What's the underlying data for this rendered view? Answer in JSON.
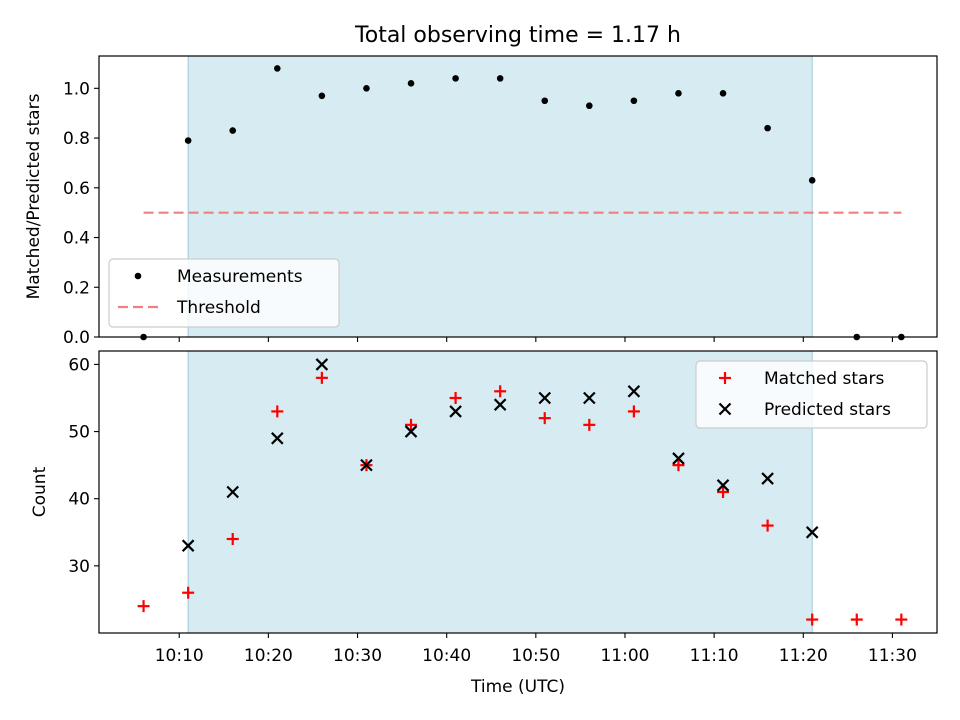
{
  "figure": {
    "title": "Total observing time = 1.17 h",
    "observing_window_color": "#add8e6",
    "observing_window": [
      "10:11",
      "11:21"
    ]
  },
  "chart_data": [
    {
      "type": "scatter",
      "panel": "top",
      "ylabel": "Matched/Predicted stars",
      "xlabel": "",
      "xlim": [
        "10:01",
        "11:35"
      ],
      "ylim": [
        0,
        1.13
      ],
      "yticks": [
        0.0,
        0.2,
        0.4,
        0.6,
        0.8,
        1.0
      ],
      "ytick_labels": [
        "0.0",
        "0.2",
        "0.4",
        "0.6",
        "0.8",
        "1.0"
      ],
      "xticks": [
        "10:10",
        "10:20",
        "10:30",
        "10:40",
        "10:50",
        "11:00",
        "11:10",
        "11:20",
        "11:30"
      ],
      "xtick_labels_visible": false,
      "legend_position": "lower-left",
      "series": [
        {
          "name": "Measurements",
          "kind": "scatter",
          "marker": "dot",
          "color": "#000000",
          "x": [
            "10:06",
            "10:11",
            "10:16",
            "10:21",
            "10:26",
            "10:31",
            "10:36",
            "10:41",
            "10:46",
            "10:51",
            "10:56",
            "11:01",
            "11:06",
            "11:11",
            "11:16",
            "11:21",
            "11:26",
            "11:31"
          ],
          "y": [
            0.0,
            0.79,
            0.83,
            1.08,
            0.97,
            1.0,
            1.02,
            1.04,
            1.04,
            0.95,
            0.93,
            0.95,
            0.98,
            0.98,
            0.84,
            0.63,
            0.0,
            0.0
          ]
        },
        {
          "name": "Threshold",
          "kind": "line",
          "style": "dashed",
          "color": "#f08080",
          "x": [
            "10:06",
            "11:31"
          ],
          "y": [
            0.5,
            0.5
          ]
        }
      ]
    },
    {
      "type": "scatter",
      "panel": "bottom",
      "ylabel": "Count",
      "xlabel": "Time (UTC)",
      "xlim": [
        "10:01",
        "11:35"
      ],
      "ylim": [
        20,
        62
      ],
      "yticks": [
        30,
        40,
        50,
        60
      ],
      "ytick_labels": [
        "30",
        "40",
        "50",
        "60"
      ],
      "xticks": [
        "10:10",
        "10:20",
        "10:30",
        "10:40",
        "10:50",
        "11:00",
        "11:10",
        "11:20",
        "11:30"
      ],
      "xtick_labels": [
        "10:10",
        "10:20",
        "10:30",
        "10:40",
        "10:50",
        "11:00",
        "11:10",
        "11:20",
        "11:30"
      ],
      "legend_position": "upper-right",
      "series": [
        {
          "name": "Matched stars",
          "kind": "scatter",
          "marker": "plus",
          "color": "#ff0000",
          "x": [
            "10:06",
            "10:11",
            "10:16",
            "10:21",
            "10:26",
            "10:31",
            "10:36",
            "10:41",
            "10:46",
            "10:51",
            "10:56",
            "11:01",
            "11:06",
            "11:11",
            "11:16",
            "11:21",
            "11:26",
            "11:31"
          ],
          "y": [
            24,
            26,
            34,
            53,
            58,
            45,
            51,
            55,
            56,
            52,
            51,
            53,
            45,
            41,
            36,
            22,
            22,
            22
          ]
        },
        {
          "name": "Predicted stars",
          "kind": "scatter",
          "marker": "x",
          "color": "#000000",
          "x": [
            "10:11",
            "10:16",
            "10:21",
            "10:26",
            "10:31",
            "10:36",
            "10:41",
            "10:46",
            "10:51",
            "10:56",
            "11:01",
            "11:06",
            "11:11",
            "11:16",
            "11:21"
          ],
          "y": [
            33,
            41,
            49,
            60,
            45,
            50,
            53,
            54,
            55,
            55,
            56,
            46,
            42,
            43,
            35
          ]
        }
      ]
    }
  ]
}
